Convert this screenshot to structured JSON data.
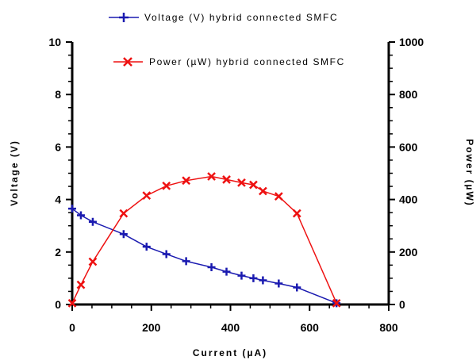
{
  "chart_data": {
    "type": "line",
    "title": "",
    "xlabel": "Current (µA)",
    "ylabel": "Voltage (V)",
    "y2label": "Power (µW)",
    "xlim": [
      0,
      800
    ],
    "ylim": [
      0,
      10
    ],
    "y2lim": [
      0,
      1000
    ],
    "x_ticks": [
      0,
      200,
      400,
      600,
      800
    ],
    "y_ticks": [
      0,
      2,
      4,
      6,
      8,
      10
    ],
    "y2_ticks": [
      0,
      200,
      400,
      600,
      800,
      1000
    ],
    "grid": false,
    "legend_position": "top",
    "series": [
      {
        "name": "Voltage (V)  hybrid connected SMFC",
        "axis": "left",
        "color": "#1a1ab0",
        "marker": "plus",
        "x": [
          0,
          22,
          52,
          130,
          188,
          238,
          288,
          352,
          390,
          428,
          458,
          482,
          522,
          568,
          668
        ],
        "y": [
          3.65,
          3.4,
          3.15,
          2.68,
          2.2,
          1.92,
          1.65,
          1.42,
          1.25,
          1.1,
          1.0,
          0.92,
          0.8,
          0.65,
          0.05
        ]
      },
      {
        "name": "Power (µW) hybrid connected SMFC",
        "axis": "right",
        "color": "#ee1111",
        "marker": "x",
        "x": [
          0,
          22,
          52,
          130,
          188,
          238,
          288,
          352,
          390,
          428,
          458,
          482,
          522,
          568,
          668
        ],
        "y": [
          5,
          75,
          163,
          347,
          415,
          452,
          472,
          488,
          476,
          464,
          456,
          432,
          412,
          347,
          5
        ]
      }
    ]
  }
}
